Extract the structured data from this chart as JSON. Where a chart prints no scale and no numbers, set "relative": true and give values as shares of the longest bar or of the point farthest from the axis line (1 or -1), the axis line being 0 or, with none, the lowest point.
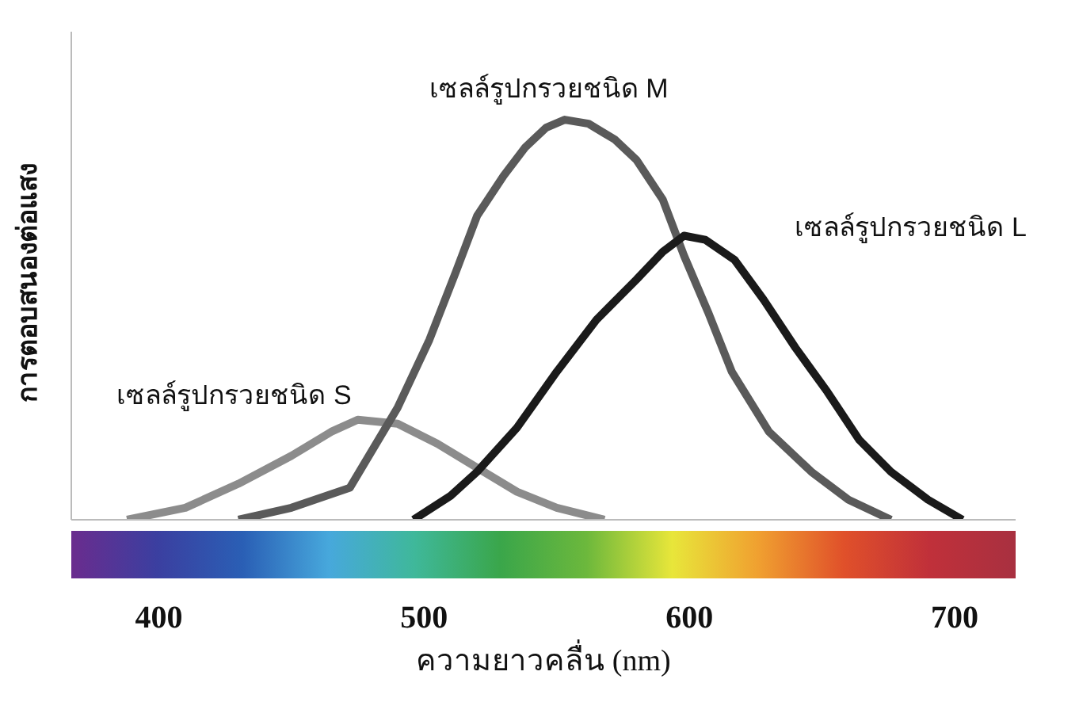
{
  "chart_data": {
    "type": "line",
    "relative": true,
    "xlabel": "ความยาวคลื่น (nm)",
    "ylabel": "การตอบสนองต่อแสง",
    "xlim": [
      367,
      723
    ],
    "xticks": [
      400,
      500,
      600,
      700
    ],
    "legend": false,
    "grid": false,
    "marker": "none",
    "line_style": "solid",
    "series": [
      {
        "name": "เซลล์รูปกรวยชนิด S",
        "color": "#8c8c8c",
        "x": [
          388,
          410,
          430,
          450,
          465,
          475,
          490,
          505,
          520,
          535,
          550,
          568
        ],
        "values": [
          0,
          0.03,
          0.09,
          0.16,
          0.22,
          0.25,
          0.24,
          0.19,
          0.13,
          0.07,
          0.03,
          0
        ]
      },
      {
        "name": "เซลล์รูปกรวยชนิด M",
        "color": "#5a5a5a",
        "x": [
          430,
          450,
          472,
          490,
          502,
          512,
          520,
          530,
          538,
          546,
          553,
          562,
          572,
          580,
          590,
          598,
          607,
          616,
          630,
          646,
          660,
          676
        ],
        "values": [
          0,
          0.03,
          0.08,
          0.28,
          0.45,
          0.62,
          0.76,
          0.86,
          0.93,
          0.98,
          1,
          0.99,
          0.95,
          0.9,
          0.8,
          0.66,
          0.52,
          0.37,
          0.22,
          0.12,
          0.05,
          0
        ]
      },
      {
        "name": "เซลล์รูปกรวยชนิด L",
        "color": "#1a1a1a",
        "x": [
          496,
          510,
          520,
          535,
          550,
          565,
          580,
          590,
          598,
          606,
          617,
          628,
          640,
          652,
          664,
          676,
          690,
          703
        ],
        "values": [
          0,
          0.06,
          0.12,
          0.23,
          0.37,
          0.5,
          0.6,
          0.67,
          0.71,
          0.7,
          0.65,
          0.55,
          0.43,
          0.32,
          0.2,
          0.12,
          0.05,
          0
        ]
      }
    ]
  }
}
